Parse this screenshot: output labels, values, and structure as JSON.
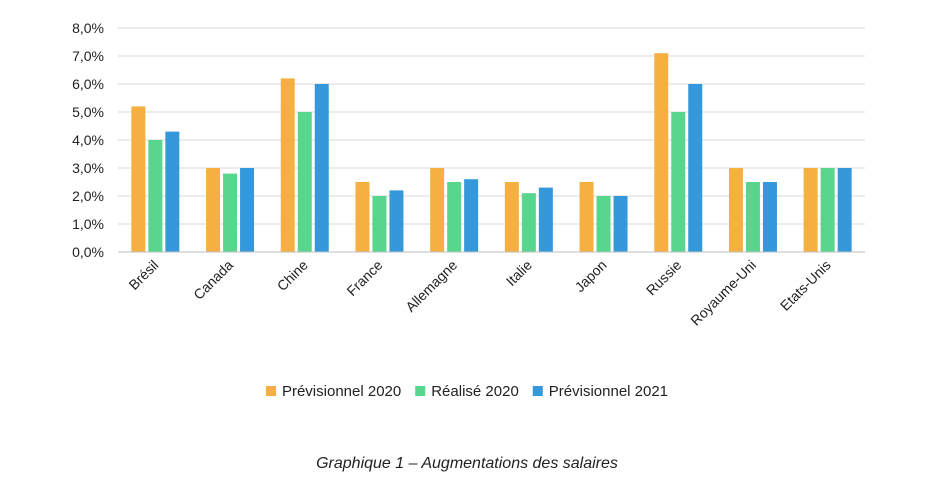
{
  "caption": "Graphique 1 – Augmentations des salaires",
  "chart_data": {
    "type": "bar",
    "categories": [
      "Brésil",
      "Canada",
      "Chine",
      "France",
      "Allemagne",
      "Italie",
      "Japon",
      "Russie",
      "Royaume-Uni",
      "Etats-Unis"
    ],
    "series": [
      {
        "name": "Prévisionnel 2020",
        "color": "#F5B041",
        "values": [
          5.2,
          3.0,
          6.2,
          2.5,
          3.0,
          2.5,
          2.5,
          7.1,
          3.0,
          3.0
        ]
      },
      {
        "name": "Réalisé 2020",
        "color": "#58D68D",
        "values": [
          4.0,
          2.8,
          5.0,
          2.0,
          2.5,
          2.1,
          2.0,
          5.0,
          2.5,
          3.0
        ]
      },
      {
        "name": "Prévisionnel 2021",
        "color": "#3498DB",
        "values": [
          4.3,
          3.0,
          6.0,
          2.2,
          2.6,
          2.3,
          2.0,
          6.0,
          2.5,
          3.0
        ]
      }
    ],
    "yticks": [
      "0,0%",
      "1,0%",
      "2,0%",
      "3,0%",
      "4,0%",
      "5,0%",
      "6,0%",
      "7,0%",
      "8,0%"
    ],
    "ylim": [
      0,
      8
    ],
    "grid": true,
    "legend_position": "bottom",
    "title": "",
    "xlabel": "",
    "ylabel": ""
  }
}
